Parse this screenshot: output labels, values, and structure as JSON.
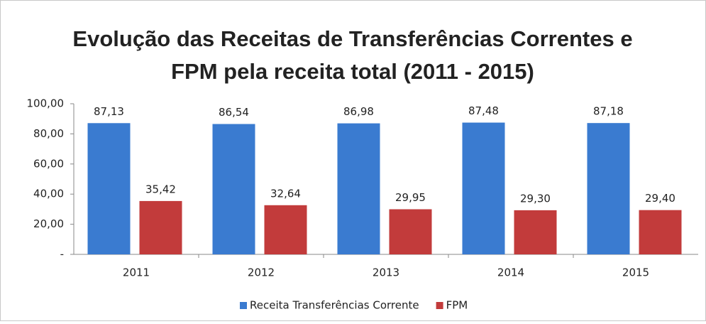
{
  "chart_data": {
    "type": "bar",
    "title": [
      "Evolução das Receitas de Transferências Correntes e",
      "FPM pela receita total (2011 - 2015)"
    ],
    "categories": [
      "2011",
      "2012",
      "2013",
      "2014",
      "2015"
    ],
    "series": [
      {
        "name": "Receita Transferências Corrente",
        "color": "#3a7bd0",
        "values": [
          87.13,
          86.54,
          86.98,
          87.48,
          87.18
        ],
        "value_labels": [
          "87,13",
          "86,54",
          "86,98",
          "87,48",
          "87,18"
        ]
      },
      {
        "name": "FPM",
        "color": "#c23b3b",
        "values": [
          35.42,
          32.64,
          29.95,
          29.3,
          29.4
        ],
        "value_labels": [
          "35,42",
          "32,64",
          "29,95",
          "29,30",
          "29,40"
        ]
      }
    ],
    "ylim": [
      0,
      100
    ],
    "yticks": [
      {
        "value": 0,
        "label": "-"
      },
      {
        "value": 20,
        "label": "20,00"
      },
      {
        "value": 40,
        "label": "40,00"
      },
      {
        "value": 60,
        "label": "60,00"
      },
      {
        "value": 80,
        "label": "80,00"
      },
      {
        "value": 100,
        "label": "100,00"
      }
    ],
    "grid": false,
    "legend": "bottom"
  }
}
